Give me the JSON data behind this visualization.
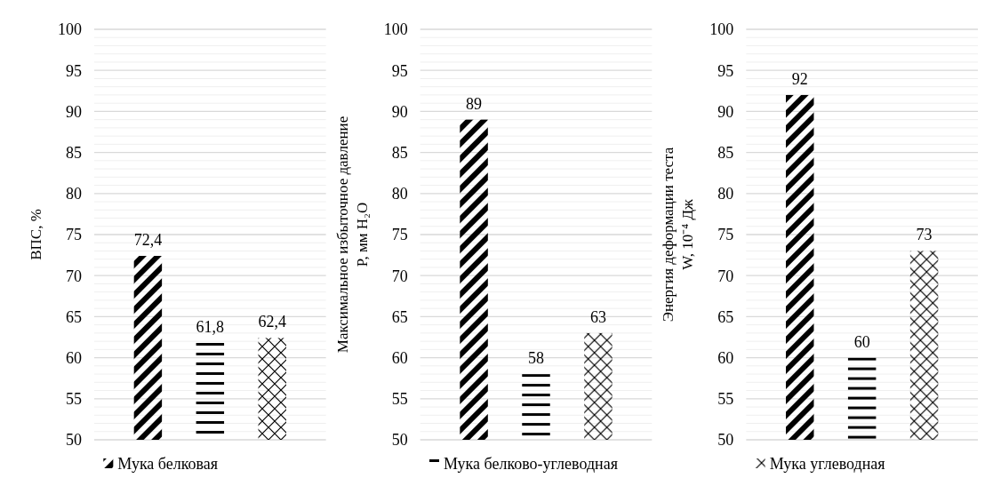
{
  "chart_data": [
    {
      "type": "bar",
      "categories": [
        null
      ],
      "ylabel": "ВПС, %",
      "ylim": [
        50,
        100
      ],
      "yticks": [
        50,
        55,
        60,
        65,
        70,
        75,
        80,
        85,
        90,
        95,
        100,
        {
          "value": 51,
          "label": null
        },
        {
          "value": 52,
          "label": null
        },
        {
          "value": 53,
          "label": null
        },
        {
          "value": 54,
          "label": null
        },
        {
          "value": 56,
          "label": null
        },
        {
          "value": 57,
          "label": null
        },
        {
          "value": 58,
          "label": null
        },
        {
          "value": 59,
          "label": null
        },
        {
          "value": 61,
          "label": null
        },
        {
          "value": 62,
          "label": null
        },
        {
          "value": 63,
          "label": null
        },
        {
          "value": 64,
          "label": null
        },
        {
          "value": 66,
          "label": null
        },
        {
          "value": 67,
          "label": null
        },
        {
          "value": 68,
          "label": null
        },
        {
          "value": 69,
          "label": null
        },
        {
          "value": 71,
          "label": null
        },
        {
          "value": 72,
          "label": null
        },
        {
          "value": 73,
          "label": null
        },
        {
          "value": 74,
          "label": null
        },
        {
          "value": 76,
          "label": null
        },
        {
          "value": 77,
          "label": null
        },
        {
          "value": 78,
          "label": null
        },
        {
          "value": 79,
          "label": null
        },
        {
          "value": 81,
          "label": null
        },
        {
          "value": 82,
          "label": null
        },
        {
          "value": 83,
          "label": null
        },
        {
          "value": 84,
          "label": null
        },
        {
          "value": 86,
          "label": null
        },
        {
          "value": 87,
          "label": null
        },
        {
          "value": 88,
          "label": null
        },
        {
          "value": 89,
          "label": null
        },
        {
          "value": 91,
          "label": null
        },
        {
          "value": 92,
          "label": null
        },
        {
          "value": 93,
          "label": null
        },
        {
          "value": 94,
          "label": null
        },
        {
          "value": 96,
          "label": null
        },
        {
          "value": 97,
          "label": null
        },
        {
          "value": 98,
          "label": null
        },
        {
          "value": 99,
          "label": null
        }
      ],
      "grid": "y",
      "legend": "bottom",
      "series": [
        {
          "name": "Мука белковая",
          "color": "#000000",
          "values": [
            72.4
          ],
          "value_labels": [
            "72,4"
          ]
        },
        {
          "color": "#000000",
          "values": [
            61.8
          ],
          "value_labels": [
            "61,8"
          ]
        },
        {
          "color": "#000000",
          "values": [
            62.4
          ],
          "value_labels": [
            "62,4"
          ]
        }
      ]
    },
    {
      "type": "bar",
      "categories": [
        null
      ],
      "ylabel": "Максимальное избыточное давление\nP, мм H₂O",
      "ylim": [
        50,
        100
      ],
      "yticks": [
        50,
        55,
        60,
        65,
        70,
        75,
        80,
        85,
        90,
        95,
        100,
        {
          "value": 51,
          "label": null
        },
        {
          "value": 52,
          "label": null
        },
        {
          "value": 53,
          "label": null
        },
        {
          "value": 54,
          "label": null
        },
        {
          "value": 56,
          "label": null
        },
        {
          "value": 57,
          "label": null
        },
        {
          "value": 58,
          "label": null
        },
        {
          "value": 59,
          "label": null
        },
        {
          "value": 61,
          "label": null
        },
        {
          "value": 62,
          "label": null
        },
        {
          "value": 63,
          "label": null
        },
        {
          "value": 64,
          "label": null
        },
        {
          "value": 66,
          "label": null
        },
        {
          "value": 67,
          "label": null
        },
        {
          "value": 68,
          "label": null
        },
        {
          "value": 69,
          "label": null
        },
        {
          "value": 71,
          "label": null
        },
        {
          "value": 72,
          "label": null
        },
        {
          "value": 73,
          "label": null
        },
        {
          "value": 74,
          "label": null
        },
        {
          "value": 76,
          "label": null
        },
        {
          "value": 77,
          "label": null
        },
        {
          "value": 78,
          "label": null
        },
        {
          "value": 79,
          "label": null
        },
        {
          "value": 81,
          "label": null
        },
        {
          "value": 82,
          "label": null
        },
        {
          "value": 83,
          "label": null
        },
        {
          "value": 84,
          "label": null
        },
        {
          "value": 86,
          "label": null
        },
        {
          "value": 87,
          "label": null
        },
        {
          "value": 88,
          "label": null
        },
        {
          "value": 89,
          "label": null
        },
        {
          "value": 91,
          "label": null
        },
        {
          "value": 92,
          "label": null
        },
        {
          "value": 93,
          "label": null
        },
        {
          "value": 94,
          "label": null
        },
        {
          "value": 96,
          "label": null
        },
        {
          "value": 97,
          "label": null
        },
        {
          "value": 98,
          "label": null
        },
        {
          "value": 99,
          "label": null
        }
      ],
      "grid": "y",
      "legend": "bottom",
      "series": [
        {
          "color": "#000000",
          "values": [
            89
          ],
          "value_labels": [
            "89"
          ]
        },
        {
          "name": "Мука белково-углеводная",
          "color": "#000000",
          "values": [
            58
          ],
          "value_labels": [
            "58"
          ]
        },
        {
          "color": "#000000",
          "values": [
            63
          ],
          "value_labels": [
            "63"
          ]
        }
      ]
    },
    {
      "type": "bar",
      "categories": [
        null
      ],
      "ylabel": "Энергия деформации теста\nW, 10⁻⁴ Дж",
      "ylim": [
        50,
        100
      ],
      "yticks": [
        50,
        55,
        60,
        65,
        70,
        75,
        80,
        85,
        90,
        95,
        100,
        {
          "value": 51,
          "label": null
        },
        {
          "value": 52,
          "label": null
        },
        {
          "value": 53,
          "label": null
        },
        {
          "value": 54,
          "label": null
        },
        {
          "value": 56,
          "label": null
        },
        {
          "value": 57,
          "label": null
        },
        {
          "value": 58,
          "label": null
        },
        {
          "value": 59,
          "label": null
        },
        {
          "value": 61,
          "label": null
        },
        {
          "value": 62,
          "label": null
        },
        {
          "value": 63,
          "label": null
        },
        {
          "value": 64,
          "label": null
        },
        {
          "value": 66,
          "label": null
        },
        {
          "value": 67,
          "label": null
        },
        {
          "value": 68,
          "label": null
        },
        {
          "value": 69,
          "label": null
        },
        {
          "value": 71,
          "label": null
        },
        {
          "value": 72,
          "label": null
        },
        {
          "value": 73,
          "label": null
        },
        {
          "value": 74,
          "label": null
        },
        {
          "value": 76,
          "label": null
        },
        {
          "value": 77,
          "label": null
        },
        {
          "value": 78,
          "label": null
        },
        {
          "value": 79,
          "label": null
        },
        {
          "value": 81,
          "label": null
        },
        {
          "value": 82,
          "label": null
        },
        {
          "value": 83,
          "label": null
        },
        {
          "value": 84,
          "label": null
        },
        {
          "value": 86,
          "label": null
        },
        {
          "value": 87,
          "label": null
        },
        {
          "value": 88,
          "label": null
        },
        {
          "value": 89,
          "label": null
        },
        {
          "value": 91,
          "label": null
        },
        {
          "value": 92,
          "label": null
        },
        {
          "value": 93,
          "label": null
        },
        {
          "value": 94,
          "label": null
        },
        {
          "value": 96,
          "label": null
        },
        {
          "value": 97,
          "label": null
        },
        {
          "value": 98,
          "label": null
        },
        {
          "value": 99,
          "label": null
        }
      ],
      "grid": "y",
      "legend": "bottom",
      "series": [
        {
          "color": "#000000",
          "values": [
            92
          ],
          "value_labels": [
            "92"
          ]
        },
        {
          "color": "#000000",
          "values": [
            60
          ],
          "value_labels": [
            "60"
          ]
        },
        {
          "name": "Мука углеводная",
          "color": "#000000",
          "values": [
            73
          ],
          "value_labels": [
            "73"
          ]
        }
      ]
    }
  ]
}
